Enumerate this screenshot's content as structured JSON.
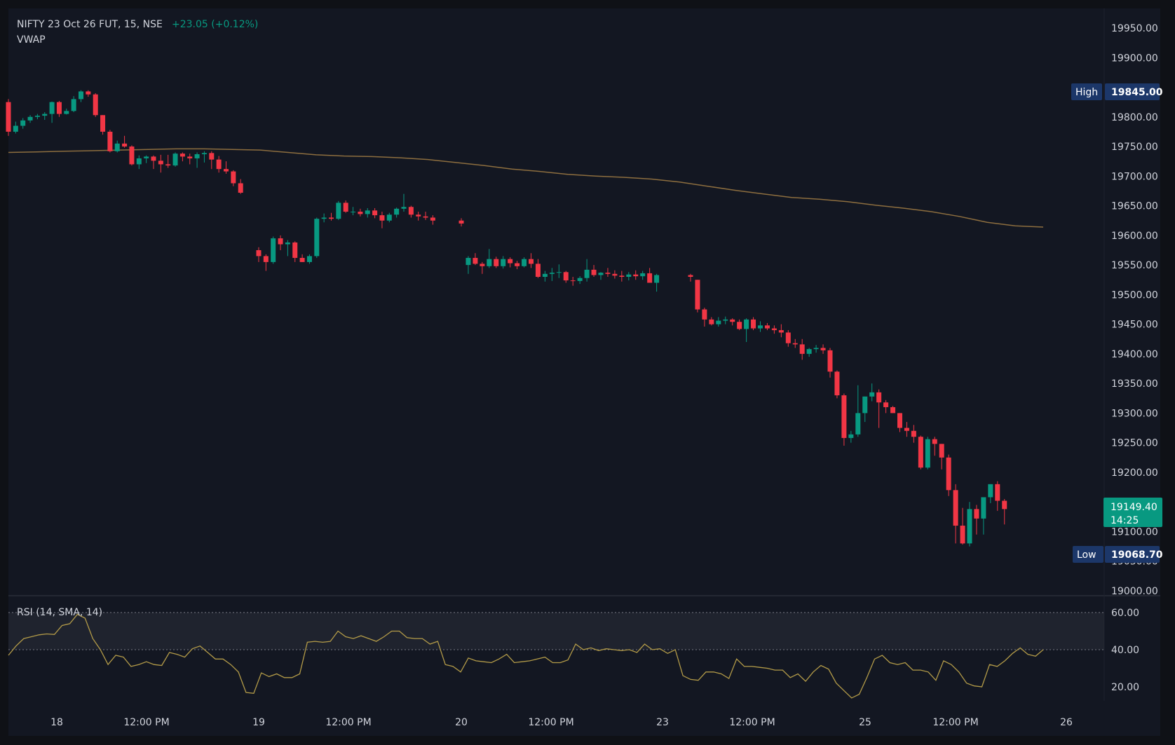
{
  "legend": {
    "symbol_line": "NIFTY 23 Oct 26 FUT, 15, NSE",
    "change": "+23.05 (+0.12%)",
    "overlay": "VWAP"
  },
  "badges": {
    "high_label": "High",
    "high_value": "19845.00",
    "low_label": "Low",
    "low_value": "19068.70",
    "last_price": "19149.40",
    "countdown": "14:25"
  },
  "colors": {
    "background": "#131722",
    "page_background": "#0f1116",
    "up": "#089981",
    "down": "#f23645",
    "vwap": "#8d6e3f",
    "rsi": "#b39b48",
    "badge": "#1c3769",
    "text": "#d1d4dc",
    "grid": "#2a2e39"
  },
  "chart_data": [
    {
      "type": "candlestick",
      "title": "NIFTY 23 Oct 26 FUT, 15, NSE",
      "overlay": "VWAP",
      "yaxis": {
        "ticks": [
          "19950.00",
          "19900.00",
          "19850.00",
          "19800.00",
          "19750.00",
          "19700.00",
          "19650.00",
          "19600.00",
          "19550.00",
          "19500.00",
          "19450.00",
          "19400.00",
          "19350.00",
          "19300.00",
          "19250.00",
          "19200.00",
          "19150.00",
          "19100.00",
          "19050.00",
          "19000.00"
        ],
        "range": [
          19000,
          19965
        ]
      },
      "xaxis": {
        "ticks": [
          "18",
          "12:00 PM",
          "19",
          "12:00 PM",
          "20",
          "12:00 PM",
          "23",
          "12:00 PM",
          "25",
          "12:00 PM",
          "26"
        ]
      },
      "high": 19845.0,
      "low": 19068.7,
      "last": 19149.4,
      "candles": [
        [
          19825,
          19830,
          19768,
          19775
        ],
        [
          19775,
          19792,
          19772,
          19785
        ],
        [
          19785,
          19798,
          19780,
          19794
        ],
        [
          19794,
          19803,
          19790,
          19800
        ],
        [
          19800,
          19805,
          19796,
          19802
        ],
        [
          19802,
          19808,
          19795,
          19805
        ],
        [
          19805,
          19826,
          19790,
          19825
        ],
        [
          19825,
          19827,
          19800,
          19805
        ],
        [
          19805,
          19814,
          19804,
          19810
        ],
        [
          19810,
          19835,
          19808,
          19830
        ],
        [
          19830,
          19845,
          19825,
          19843
        ],
        [
          19843,
          19845,
          19834,
          19838
        ],
        [
          19838,
          19840,
          19800,
          19803
        ],
        [
          19803,
          19803,
          19770,
          19775
        ],
        [
          19775,
          19778,
          19740,
          19742
        ],
        [
          19742,
          19760,
          19740,
          19755
        ],
        [
          19755,
          19768,
          19748,
          19750
        ],
        [
          19750,
          19752,
          19718,
          19720
        ],
        [
          19720,
          19735,
          19712,
          19730
        ],
        [
          19730,
          19735,
          19722,
          19733
        ],
        [
          19733,
          19735,
          19712,
          19726
        ],
        [
          19726,
          19736,
          19706,
          19720
        ],
        [
          19720,
          19736,
          19714,
          19718
        ],
        [
          19718,
          19740,
          19716,
          19738
        ],
        [
          19738,
          19740,
          19725,
          19733
        ],
        [
          19733,
          19738,
          19720,
          19730
        ],
        [
          19730,
          19740,
          19714,
          19737
        ],
        [
          19737,
          19742,
          19723,
          19739
        ],
        [
          19739,
          19742,
          19712,
          19728
        ],
        [
          19728,
          19734,
          19706,
          19712
        ],
        [
          19712,
          19725,
          19704,
          19708
        ],
        [
          19708,
          19710,
          19683,
          19688
        ],
        [
          19688,
          19695,
          19670,
          19672
        ],
        [
          19575,
          19580,
          19555,
          19565
        ],
        [
          19565,
          19568,
          19540,
          19555
        ],
        [
          19555,
          19598,
          19552,
          19595
        ],
        [
          19595,
          19600,
          19575,
          19585
        ],
        [
          19585,
          19592,
          19565,
          19588
        ],
        [
          19588,
          19590,
          19555,
          19562
        ],
        [
          19562,
          19568,
          19555,
          19555
        ],
        [
          19555,
          19568,
          19552,
          19565
        ],
        [
          19565,
          19630,
          19562,
          19628
        ],
        [
          19628,
          19637,
          19622,
          19630
        ],
        [
          19630,
          19638,
          19625,
          19628
        ],
        [
          19628,
          19658,
          19626,
          19655
        ],
        [
          19655,
          19659,
          19638,
          19640
        ],
        [
          19640,
          19648,
          19634,
          19640
        ],
        [
          19640,
          19645,
          19632,
          19636
        ],
        [
          19636,
          19646,
          19630,
          19642
        ],
        [
          19642,
          19646,
          19629,
          19634
        ],
        [
          19634,
          19640,
          19612,
          19625
        ],
        [
          19625,
          19638,
          19622,
          19635
        ],
        [
          19635,
          19647,
          19630,
          19645
        ],
        [
          19645,
          19670,
          19640,
          19648
        ],
        [
          19648,
          19650,
          19630,
          19635
        ],
        [
          19635,
          19640,
          19625,
          19632
        ],
        [
          19632,
          19640,
          19626,
          19630
        ],
        [
          19630,
          19634,
          19618,
          19625
        ],
        [
          19625,
          19629,
          19615,
          19620
        ],
        [
          19550,
          19565,
          19535,
          19562
        ],
        [
          19562,
          19570,
          19550,
          19552
        ],
        [
          19552,
          19555,
          19535,
          19548
        ],
        [
          19548,
          19577,
          19545,
          19560
        ],
        [
          19560,
          19564,
          19545,
          19548
        ],
        [
          19548,
          19565,
          19544,
          19560
        ],
        [
          19560,
          19563,
          19546,
          19553
        ],
        [
          19553,
          19557,
          19543,
          19548
        ],
        [
          19548,
          19563,
          19546,
          19560
        ],
        [
          19560,
          19570,
          19545,
          19552
        ],
        [
          19552,
          19560,
          19528,
          19530
        ],
        [
          19530,
          19540,
          19522,
          19535
        ],
        [
          19535,
          19545,
          19523,
          19537
        ],
        [
          19537,
          19551,
          19528,
          19538
        ],
        [
          19538,
          19540,
          19520,
          19524
        ],
        [
          19524,
          19530,
          19515,
          19523
        ],
        [
          19523,
          19531,
          19518,
          19528
        ],
        [
          19528,
          19560,
          19522,
          19542
        ],
        [
          19542,
          19550,
          19530,
          19533
        ],
        [
          19533,
          19538,
          19525,
          19537
        ],
        [
          19537,
          19545,
          19530,
          19535
        ],
        [
          19535,
          19541,
          19527,
          19532
        ],
        [
          19532,
          19540,
          19522,
          19530
        ],
        [
          19530,
          19538,
          19524,
          19534
        ],
        [
          19534,
          19541,
          19525,
          19531
        ],
        [
          19531,
          19540,
          19525,
          19536
        ],
        [
          19536,
          19545,
          19522,
          19520
        ],
        [
          19520,
          19535,
          19505,
          19533
        ],
        [
          19533,
          19535,
          19522,
          19530
        ],
        [
          19525,
          19525,
          19470,
          19475
        ],
        [
          19475,
          19478,
          19446,
          19458
        ],
        [
          19458,
          19462,
          19448,
          19450
        ],
        [
          19450,
          19462,
          19446,
          19456
        ],
        [
          19456,
          19463,
          19450,
          19458
        ],
        [
          19458,
          19460,
          19448,
          19454
        ],
        [
          19454,
          19458,
          19440,
          19442
        ],
        [
          19442,
          19460,
          19420,
          19458
        ],
        [
          19458,
          19462,
          19440,
          19443
        ],
        [
          19443,
          19455,
          19437,
          19448
        ],
        [
          19448,
          19452,
          19440,
          19443
        ],
        [
          19443,
          19448,
          19434,
          19440
        ],
        [
          19440,
          19450,
          19428,
          19436
        ],
        [
          19436,
          19440,
          19412,
          19418
        ],
        [
          19418,
          19425,
          19410,
          19416
        ],
        [
          19416,
          19425,
          19390,
          19400
        ],
        [
          19400,
          19410,
          19395,
          19408
        ],
        [
          19408,
          19415,
          19402,
          19410
        ],
        [
          19410,
          19416,
          19400,
          19406
        ],
        [
          19406,
          19410,
          19360,
          19370
        ],
        [
          19370,
          19372,
          19325,
          19330
        ],
        [
          19330,
          19333,
          19245,
          19258
        ],
        [
          19258,
          19270,
          19250,
          19264
        ],
        [
          19264,
          19347,
          19260,
          19300
        ],
        [
          19300,
          19328,
          19285,
          19328
        ],
        [
          19328,
          19350,
          19320,
          19335
        ],
        [
          19335,
          19340,
          19275,
          19318
        ],
        [
          19318,
          19322,
          19300,
          19310
        ],
        [
          19310,
          19312,
          19300,
          19300
        ],
        [
          19300,
          19300,
          19268,
          19275
        ],
        [
          19275,
          19285,
          19260,
          19270
        ],
        [
          19270,
          19280,
          19250,
          19260
        ],
        [
          19260,
          19262,
          19205,
          19208
        ],
        [
          19208,
          19260,
          19205,
          19256
        ],
        [
          19256,
          19260,
          19228,
          19248
        ],
        [
          19248,
          19248,
          19205,
          19225
        ],
        [
          19225,
          19230,
          19160,
          19170
        ],
        [
          19170,
          19180,
          19080,
          19110
        ],
        [
          19110,
          19140,
          19078,
          19080
        ],
        [
          19080,
          19150,
          19075,
          19138
        ],
        [
          19138,
          19145,
          19095,
          19122
        ],
        [
          19122,
          19155,
          19095,
          19158
        ],
        [
          19158,
          19180,
          19148,
          19180
        ],
        [
          19180,
          19185,
          19135,
          19152
        ],
        [
          19152,
          19155,
          19112,
          19138
        ],
        [
          19138,
          19158,
          19130,
          19155
        ]
      ],
      "vwap": [
        19740,
        19741,
        19742,
        19743,
        19744,
        19745,
        19746,
        19746,
        19745,
        19744,
        19740,
        19736,
        19734,
        19733,
        19731,
        19728,
        19723,
        19718,
        19712,
        19708,
        19703,
        19700,
        19698,
        19695,
        19690,
        19683,
        19676,
        19670,
        19664,
        19661,
        19657,
        19651,
        19646,
        19640,
        19632,
        19622,
        19616,
        19614
      ]
    },
    {
      "type": "line",
      "title": "RSI (14, SMA, 14)",
      "yaxis": {
        "ticks": [
          "60.00",
          "40.00",
          "20.00"
        ],
        "range": [
          10,
          72
        ]
      },
      "band": [
        40,
        60
      ],
      "series": [
        {
          "values": [
            37,
            42,
            46,
            47,
            48,
            48.5,
            48.2,
            53,
            54,
            59,
            57,
            46,
            40,
            32,
            37,
            36,
            31,
            32,
            33.5,
            32,
            31.5,
            38.5,
            37.5,
            36,
            40.5,
            42,
            38.5,
            35,
            35,
            32,
            28,
            17,
            16.5,
            27.5,
            25.5,
            27,
            25,
            25,
            27,
            44,
            44.5,
            44,
            44.5,
            50,
            47,
            46,
            47.5,
            46,
            44.5,
            47,
            50,
            50,
            46.5,
            46,
            46,
            43,
            44.5,
            32,
            31,
            28,
            35.5,
            34,
            33.5,
            33,
            35,
            37.5,
            33,
            33.5,
            34,
            35,
            36,
            33,
            33,
            34.5,
            43,
            40,
            41,
            39.5,
            40.5,
            40,
            39.5,
            40,
            38.5,
            43,
            40,
            40.5,
            38,
            40,
            26,
            24,
            23.5,
            28,
            28,
            27,
            24.5,
            35,
            31,
            31,
            30.5,
            30,
            29,
            29,
            25,
            27,
            23,
            28,
            31.5,
            29.5,
            22,
            18,
            14,
            16,
            25,
            35,
            37,
            33,
            32,
            33,
            29,
            29,
            28,
            23.5,
            34,
            32,
            28,
            22,
            20.5,
            20,
            32,
            31,
            34,
            38,
            41,
            37.5,
            36.5,
            40
          ]
        }
      ]
    }
  ]
}
